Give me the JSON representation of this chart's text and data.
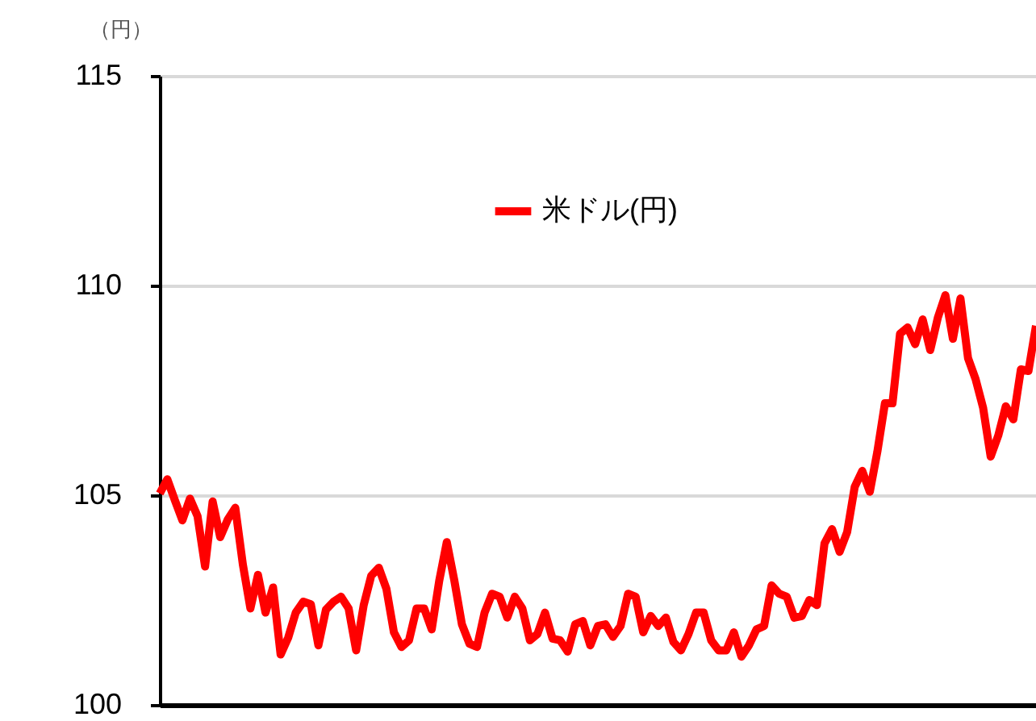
{
  "chart_data": {
    "type": "line",
    "ylabel": "（円）",
    "ylim": [
      100,
      115
    ],
    "yticks": [
      100,
      105,
      110,
      115
    ],
    "grid": "y",
    "legend": "top",
    "tick_labels": "y",
    "marker": "none",
    "line_style": "solid",
    "categories": [
      null,
      null,
      null,
      null,
      null,
      null,
      null,
      null,
      null,
      null,
      null,
      null,
      null,
      null,
      null,
      null,
      null,
      null,
      null,
      null,
      null,
      null,
      null,
      null,
      null,
      null,
      null,
      null,
      null,
      null,
      null,
      null,
      null,
      null,
      null,
      null,
      null,
      null,
      null,
      null,
      null,
      null,
      null,
      null,
      null,
      null,
      null,
      null,
      null,
      null,
      null,
      null,
      null,
      null,
      null,
      null,
      null,
      null,
      null,
      null,
      null,
      null,
      null,
      null,
      null,
      null,
      null,
      null,
      null,
      null,
      null,
      null,
      null,
      null,
      null,
      null,
      null,
      null,
      null,
      null,
      null,
      null,
      null,
      null,
      null,
      null,
      null,
      null,
      null,
      null,
      null,
      null,
      null,
      null,
      null,
      null,
      null,
      null,
      null,
      null,
      null,
      null,
      null,
      null,
      null,
      null,
      null,
      null,
      null,
      null,
      null,
      null,
      null,
      null,
      null,
      null,
      null
    ],
    "series": [
      {
        "name": "米ドル(円)",
        "color": "#ff0000",
        "values": [
          105.04,
          105.38,
          104.88,
          104.4,
          104.92,
          104.5,
          103.3,
          104.85,
          104.0,
          104.42,
          104.7,
          103.35,
          102.3,
          103.1,
          102.2,
          102.8,
          101.2,
          101.6,
          102.2,
          102.46,
          102.4,
          101.42,
          102.27,
          102.46,
          102.58,
          102.3,
          101.3,
          102.38,
          103.08,
          103.27,
          102.77,
          101.73,
          101.38,
          101.54,
          102.3,
          102.3,
          101.8,
          102.96,
          103.88,
          102.96,
          101.92,
          101.46,
          101.38,
          102.2,
          102.65,
          102.58,
          102.08,
          102.58,
          102.3,
          101.54,
          101.69,
          102.2,
          101.58,
          101.54,
          101.27,
          101.92,
          102.0,
          101.42,
          101.88,
          101.92,
          101.62,
          101.88,
          102.65,
          102.58,
          101.73,
          102.12,
          101.88,
          102.08,
          101.5,
          101.3,
          101.69,
          102.2,
          102.2,
          101.54,
          101.3,
          101.3,
          101.73,
          101.15,
          101.42,
          101.8,
          101.88,
          102.85,
          102.65,
          102.58,
          102.08,
          102.12,
          102.5,
          102.38,
          103.85,
          104.19,
          103.65,
          104.12,
          105.2,
          105.58,
          105.08,
          106.04,
          107.19,
          107.19,
          108.85,
          109.0,
          108.6,
          109.19,
          108.46,
          109.23,
          109.77,
          108.73,
          109.69,
          108.27,
          107.77,
          107.08,
          105.92,
          106.42,
          107.12,
          106.81,
          108.0,
          107.96,
          109.04
        ]
      }
    ]
  }
}
